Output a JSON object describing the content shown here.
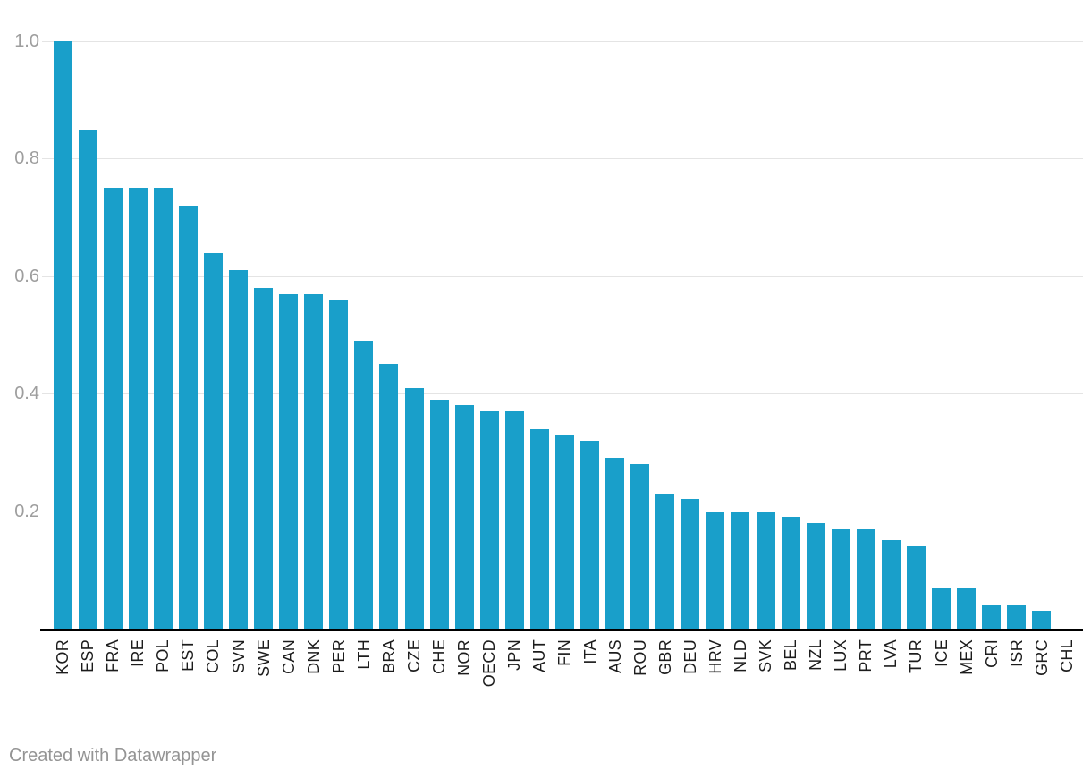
{
  "footer": {
    "credit": "Created with Datawrapper",
    "color": "#949494"
  },
  "chart_data": {
    "type": "bar",
    "title": "",
    "xlabel": "",
    "ylabel": "",
    "categories": [
      "KOR",
      "ESP",
      "FRA",
      "IRE",
      "POL",
      "EST",
      "COL",
      "SVN",
      "SWE",
      "CAN",
      "DNK",
      "PER",
      "LTH",
      "BRA",
      "CZE",
      "CHE",
      "NOR",
      "OECD",
      "JPN",
      "AUT",
      "FIN",
      "ITA",
      "AUS",
      "ROU",
      "GBR",
      "DEU",
      "HRV",
      "NLD",
      "SVK",
      "BEL",
      "NZL",
      "LUX",
      "PRT",
      "LVA",
      "TUR",
      "ICE",
      "MEX",
      "CRI",
      "ISR",
      "GRC",
      "CHL"
    ],
    "values": [
      1.0,
      0.85,
      0.75,
      0.75,
      0.75,
      0.72,
      0.64,
      0.61,
      0.58,
      0.57,
      0.57,
      0.56,
      0.49,
      0.45,
      0.41,
      0.39,
      0.38,
      0.37,
      0.37,
      0.34,
      0.33,
      0.32,
      0.29,
      0.28,
      0.23,
      0.22,
      0.2,
      0.2,
      0.2,
      0.19,
      0.18,
      0.17,
      0.17,
      0.15,
      0.14,
      0.07,
      0.07,
      0.04,
      0.04,
      0.03,
      0.0
    ],
    "ylim": [
      0,
      1.0
    ],
    "yticks": [
      0.2,
      0.4,
      0.6,
      0.8,
      1.0
    ],
    "ytick_labels": [
      "0.2",
      "0.4",
      "0.6",
      "0.8",
      "1.0"
    ],
    "grid": true,
    "legend": false,
    "x_labels_rotated_bottom_to_top": true,
    "bar_color": "#199fca",
    "gridline_color": "#e4e4e4",
    "axis_line_color": "#000000",
    "ytick_label_color": "#9e9e9e",
    "xtick_label_color": "#1c1c1c"
  }
}
